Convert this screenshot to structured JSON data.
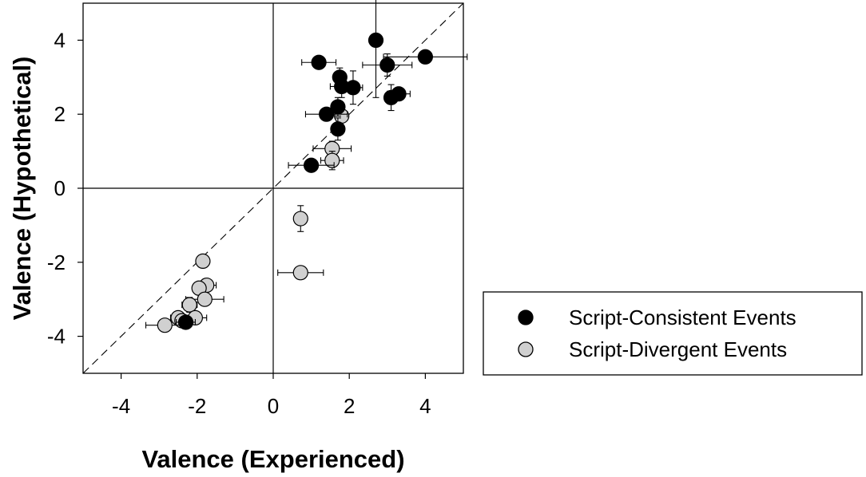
{
  "chart_data": {
    "type": "scatter",
    "title": "",
    "xlabel": "Valence (Experienced)",
    "ylabel": "Valence (Hypothetical)",
    "xlim": [
      -5,
      5
    ],
    "ylim": [
      -5,
      5
    ],
    "xticks": [
      -4,
      -2,
      0,
      2,
      4
    ],
    "yticks": [
      -4,
      -2,
      0,
      2,
      4
    ],
    "reference_lines": [
      "x = 0",
      "y = 0",
      "y = x (dashed)"
    ],
    "grid": false,
    "legend_position": "right",
    "series": [
      {
        "name": "Script-Consistent Events",
        "color": "#000000",
        "points": [
          {
            "x": 2.7,
            "y": 4.0,
            "xerr": 0.0,
            "yerr": 1.55
          },
          {
            "x": 4.0,
            "y": 3.55,
            "xerr": 1.1,
            "yerr": 0.0
          },
          {
            "x": 3.0,
            "y": 3.33,
            "xerr": 0.65,
            "yerr": 0.3
          },
          {
            "x": 1.2,
            "y": 3.4,
            "xerr": 0.45,
            "yerr": 0.0
          },
          {
            "x": 1.75,
            "y": 3.0,
            "xerr": 0.0,
            "yerr": 0.25
          },
          {
            "x": 1.8,
            "y": 2.75,
            "xerr": 0.3,
            "yerr": 0.3
          },
          {
            "x": 2.1,
            "y": 2.72,
            "xerr": 0.25,
            "yerr": 0.45
          },
          {
            "x": 3.3,
            "y": 2.55,
            "xerr": 0.3,
            "yerr": 0.0
          },
          {
            "x": 3.1,
            "y": 2.45,
            "xerr": 0.0,
            "yerr": 0.35
          },
          {
            "x": 1.7,
            "y": 2.2,
            "xerr": 0.0,
            "yerr": 0.25
          },
          {
            "x": 1.4,
            "y": 2.0,
            "xerr": 0.55,
            "yerr": 0.0
          },
          {
            "x": 1.7,
            "y": 1.6,
            "xerr": 0.0,
            "yerr": 0.3
          },
          {
            "x": 1.0,
            "y": 0.62,
            "xerr": 0.6,
            "yerr": 0.0
          },
          {
            "x": -2.3,
            "y": -3.62,
            "xerr": 0.25,
            "yerr": 0.0
          }
        ]
      },
      {
        "name": "Script-Divergent Events",
        "color": "#d0d0d0",
        "points": [
          {
            "x": 1.8,
            "y": 1.95,
            "xerr": 0.0,
            "yerr": 0.15
          },
          {
            "x": 1.55,
            "y": 1.07,
            "xerr": 0.5,
            "yerr": 0.2
          },
          {
            "x": 1.55,
            "y": 0.75,
            "xerr": 0.3,
            "yerr": 0.25
          },
          {
            "x": 0.72,
            "y": -0.82,
            "xerr": 0.0,
            "yerr": 0.35
          },
          {
            "x": 0.72,
            "y": -2.28,
            "xerr": 0.6,
            "yerr": 0.0
          },
          {
            "x": -1.85,
            "y": -1.97,
            "xerr": 0.0,
            "yerr": 0.15
          },
          {
            "x": -1.75,
            "y": -2.62,
            "xerr": 0.25,
            "yerr": 0.0
          },
          {
            "x": -1.95,
            "y": -2.7,
            "xerr": 0.0,
            "yerr": 0.0
          },
          {
            "x": -1.8,
            "y": -3.0,
            "xerr": 0.5,
            "yerr": 0.0
          },
          {
            "x": -2.2,
            "y": -3.15,
            "xerr": 0.2,
            "yerr": 0.2
          },
          {
            "x": -2.5,
            "y": -3.5,
            "xerr": 0.2,
            "yerr": 0.0
          },
          {
            "x": -2.05,
            "y": -3.5,
            "xerr": 0.3,
            "yerr": 0.0
          },
          {
            "x": -2.4,
            "y": -3.58,
            "xerr": 0.0,
            "yerr": 0.0
          },
          {
            "x": -2.85,
            "y": -3.7,
            "xerr": 0.5,
            "yerr": 0.0
          }
        ]
      }
    ]
  },
  "legend": {
    "items": [
      {
        "label": "Script-Consistent Events",
        "color": "#000000"
      },
      {
        "label": "Script-Divergent Events",
        "color": "#d0d0d0"
      }
    ]
  }
}
